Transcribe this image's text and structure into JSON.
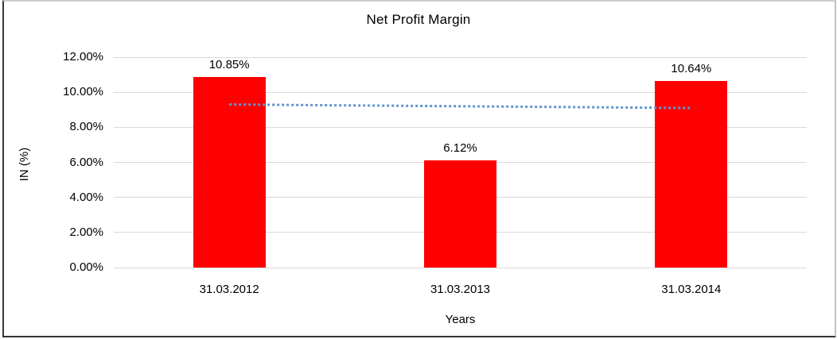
{
  "chart_data": {
    "type": "bar",
    "title": "Net Profit Margin",
    "xlabel": "Years",
    "ylabel": "IN (%)",
    "categories": [
      "31.03.2012",
      "31.03.2013",
      "31.03.2014"
    ],
    "values": [
      10.85,
      6.12,
      10.64
    ],
    "value_labels": [
      "10.85%",
      "6.12%",
      "10.64%"
    ],
    "ylim": [
      0,
      12
    ],
    "y_tick_values": [
      0,
      2,
      4,
      6,
      8,
      10,
      12
    ],
    "y_tick_labels": [
      "0.00%",
      "2.00%",
      "4.00%",
      "6.00%",
      "8.00%",
      "10.00%",
      "12.00%"
    ],
    "grid": "horizontal",
    "legend_position": "none",
    "bar_color": "#ff0000",
    "gridline_color": "#d9d9d9",
    "text_color": "#000000",
    "trendline": {
      "type": "linear",
      "style": "dotted",
      "color": "#6394ce",
      "start_value": 9.3,
      "end_value": 9.1
    }
  }
}
